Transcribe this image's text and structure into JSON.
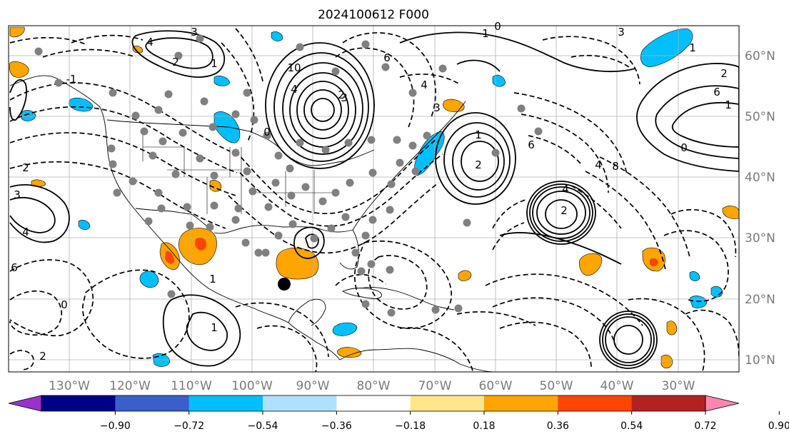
{
  "map": {
    "title": "2024100612 F000",
    "lon_labels": [
      "130°W",
      "120°W",
      "110°W",
      "100°W",
      "90°W",
      "80°W",
      "70°W",
      "60°W",
      "50°W",
      "40°W",
      "30°W"
    ],
    "lat_labels": [
      "60°N",
      "50°N",
      "40°N",
      "30°N",
      "20°N",
      "10°N"
    ],
    "extent": {
      "lon_min": -136,
      "lon_max": -16,
      "lat_min": 8,
      "lat_max": 65
    },
    "gridlines": true,
    "contour_labels": [
      "4",
      "3",
      "2",
      "1",
      "0",
      "-1",
      "2",
      "3",
      "4",
      "6",
      "10",
      "4",
      "3",
      "6",
      "4",
      "3",
      "2",
      "0",
      "1",
      "3",
      "2",
      "1",
      "6",
      "8",
      "4",
      "2",
      "4",
      "6",
      "1",
      "1",
      "0",
      "2",
      "1",
      "0",
      "1",
      "2"
    ]
  },
  "colorbar": {
    "ticks": [
      "−0.90",
      "−0.72",
      "−0.54",
      "−0.36",
      "−0.18",
      "0.18",
      "0.36",
      "0.54",
      "0.72",
      "0.90"
    ],
    "colors": [
      "#9932cc",
      "#00008b",
      "#3a5fcd",
      "#00bfff",
      "#b0e0ff",
      "#ffffff",
      "#ffe68a",
      "#ffa500",
      "#ff4500",
      "#b22222",
      "#ff86b0"
    ]
  },
  "colors": {
    "positive_fill": "#ffa500",
    "strong_positive_fill": "#ff4500",
    "negative_fill": "#00bfff",
    "contour": "#000000",
    "grid": "#b0b0b0",
    "station": "#808080"
  }
}
